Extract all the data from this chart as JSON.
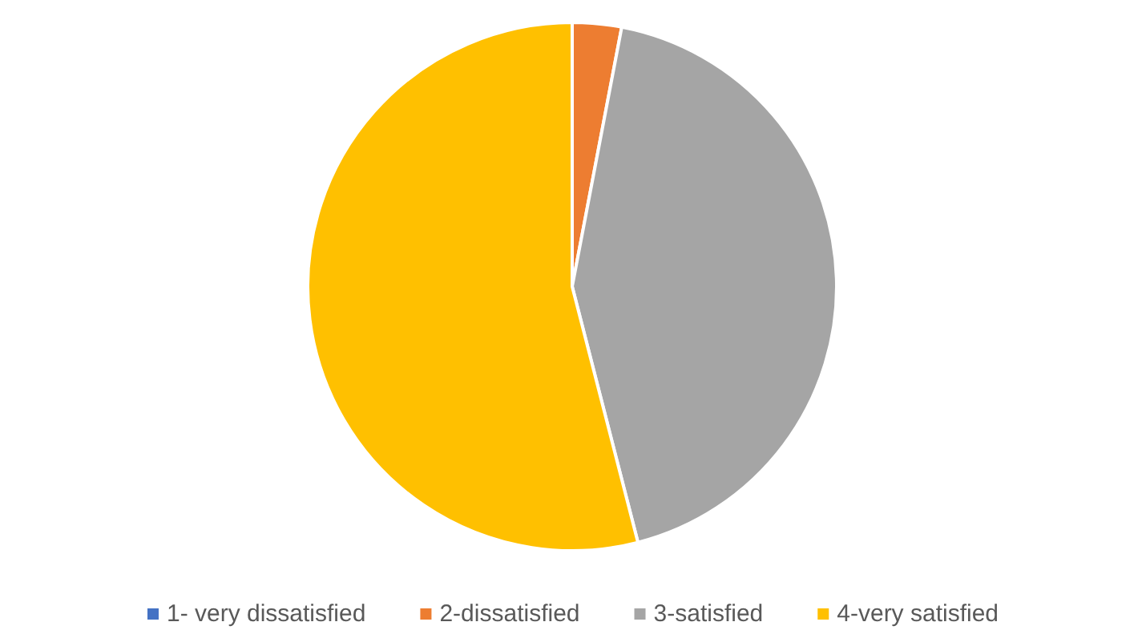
{
  "chart_data": {
    "type": "pie",
    "categories": [
      "1- very dissatisfied",
      "2-dissatisfied",
      "3-satisfied",
      "4-very satisfied"
    ],
    "values": [
      0,
      3,
      43,
      54
    ],
    "colors": [
      "#4472c4",
      "#ed7d31",
      "#a5a5a5",
      "#ffc000"
    ],
    "legend": "bottom"
  }
}
